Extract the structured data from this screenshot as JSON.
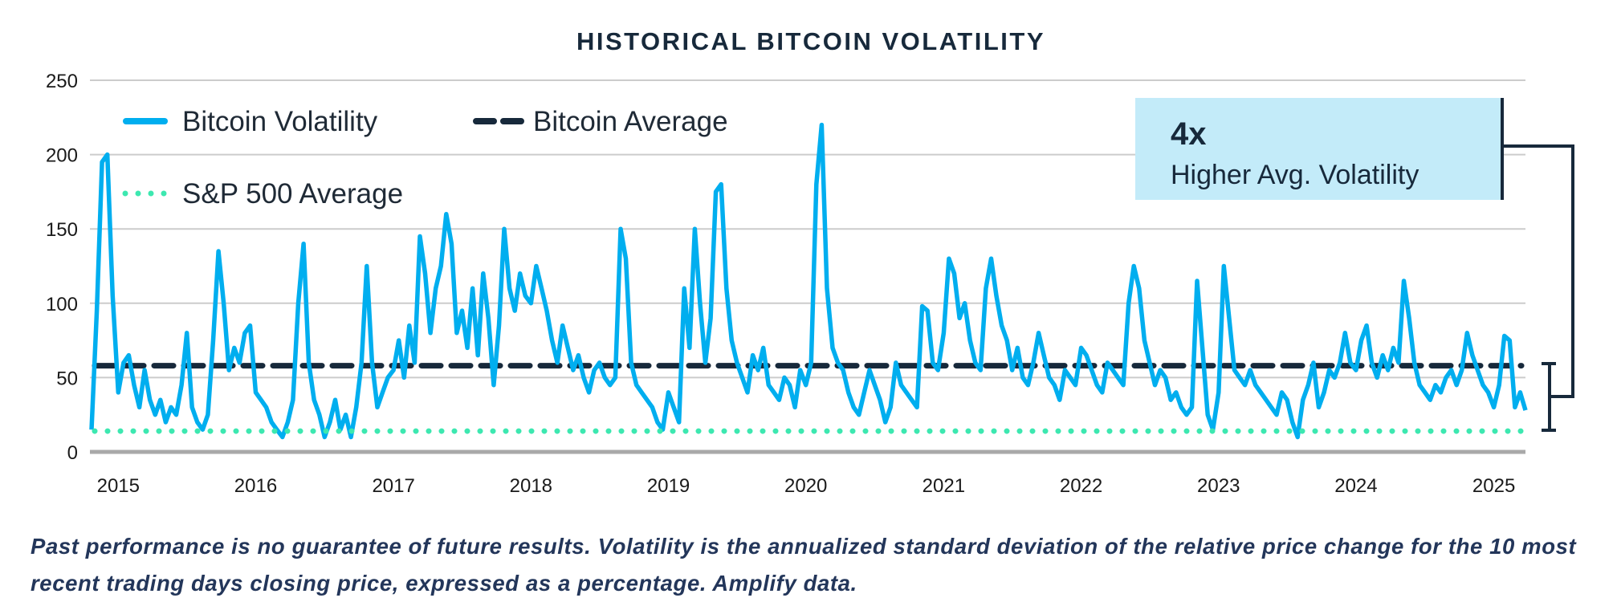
{
  "chart_data": {
    "type": "line",
    "title": "HISTORICAL BITCOIN VOLATILITY",
    "xlabel": "",
    "ylabel": "",
    "ylim": [
      0,
      250
    ],
    "yticks": [
      "0",
      "50",
      "100",
      "150",
      "200",
      "250"
    ],
    "xticks": [
      "2015",
      "2016",
      "2017",
      "2018",
      "2019",
      "2020",
      "2021",
      "2022",
      "2023",
      "2024",
      "2025"
    ],
    "grid": true,
    "legend_position": "top-left",
    "legend": [
      "Bitcoin Volatility",
      "Bitcoin Average",
      "S&P 500 Average"
    ],
    "series": [
      {
        "name": "Bitcoin Volatility",
        "color": "#00aeef",
        "style": "solid",
        "points": [
          [
            "2014-10-22",
            15
          ],
          [
            "2014-11-05",
            95
          ],
          [
            "2014-11-19",
            195
          ],
          [
            "2014-12-03",
            200
          ],
          [
            "2014-12-17",
            105
          ],
          [
            "2015-01-01",
            40
          ],
          [
            "2015-01-15",
            60
          ],
          [
            "2015-01-29",
            65
          ],
          [
            "2015-02-12",
            45
          ],
          [
            "2015-02-26",
            30
          ],
          [
            "2015-03-12",
            55
          ],
          [
            "2015-03-26",
            35
          ],
          [
            "2015-04-09",
            25
          ],
          [
            "2015-04-23",
            35
          ],
          [
            "2015-05-07",
            20
          ],
          [
            "2015-05-21",
            30
          ],
          [
            "2015-06-04",
            25
          ],
          [
            "2015-06-18",
            45
          ],
          [
            "2015-07-02",
            80
          ],
          [
            "2015-07-16",
            30
          ],
          [
            "2015-07-30",
            20
          ],
          [
            "2015-08-13",
            15
          ],
          [
            "2015-08-27",
            25
          ],
          [
            "2015-09-10",
            75
          ],
          [
            "2015-09-24",
            135
          ],
          [
            "2015-10-08",
            100
          ],
          [
            "2015-10-22",
            55
          ],
          [
            "2015-11-05",
            70
          ],
          [
            "2015-11-19",
            60
          ],
          [
            "2015-12-03",
            80
          ],
          [
            "2015-12-17",
            85
          ],
          [
            "2016-01-01",
            40
          ],
          [
            "2016-01-15",
            35
          ],
          [
            "2016-01-29",
            30
          ],
          [
            "2016-02-12",
            20
          ],
          [
            "2016-02-26",
            15
          ],
          [
            "2016-03-12",
            10
          ],
          [
            "2016-03-26",
            20
          ],
          [
            "2016-04-09",
            35
          ],
          [
            "2016-04-23",
            100
          ],
          [
            "2016-05-07",
            140
          ],
          [
            "2016-05-21",
            60
          ],
          [
            "2016-06-04",
            35
          ],
          [
            "2016-06-18",
            25
          ],
          [
            "2016-07-02",
            10
          ],
          [
            "2016-07-16",
            20
          ],
          [
            "2016-07-30",
            35
          ],
          [
            "2016-08-13",
            15
          ],
          [
            "2016-08-27",
            25
          ],
          [
            "2016-09-10",
            10
          ],
          [
            "2016-09-24",
            30
          ],
          [
            "2016-10-08",
            60
          ],
          [
            "2016-10-22",
            125
          ],
          [
            "2016-11-05",
            60
          ],
          [
            "2016-11-19",
            30
          ],
          [
            "2016-12-03",
            40
          ],
          [
            "2016-12-17",
            50
          ],
          [
            "2017-01-01",
            55
          ],
          [
            "2017-01-15",
            75
          ],
          [
            "2017-01-29",
            50
          ],
          [
            "2017-02-12",
            85
          ],
          [
            "2017-02-26",
            60
          ],
          [
            "2017-03-12",
            145
          ],
          [
            "2017-03-26",
            120
          ],
          [
            "2017-04-09",
            80
          ],
          [
            "2017-04-23",
            110
          ],
          [
            "2017-05-07",
            125
          ],
          [
            "2017-05-21",
            160
          ],
          [
            "2017-06-04",
            140
          ],
          [
            "2017-06-18",
            80
          ],
          [
            "2017-07-02",
            95
          ],
          [
            "2017-07-16",
            70
          ],
          [
            "2017-07-30",
            110
          ],
          [
            "2017-08-13",
            65
          ],
          [
            "2017-08-27",
            120
          ],
          [
            "2017-09-10",
            90
          ],
          [
            "2017-09-24",
            45
          ],
          [
            "2017-10-08",
            85
          ],
          [
            "2017-10-22",
            150
          ],
          [
            "2017-11-05",
            110
          ],
          [
            "2017-11-19",
            95
          ],
          [
            "2017-12-03",
            120
          ],
          [
            "2017-12-17",
            105
          ],
          [
            "2018-01-01",
            100
          ],
          [
            "2018-01-15",
            125
          ],
          [
            "2018-01-29",
            110
          ],
          [
            "2018-02-12",
            95
          ],
          [
            "2018-02-26",
            75
          ],
          [
            "2018-03-12",
            60
          ],
          [
            "2018-03-26",
            85
          ],
          [
            "2018-04-09",
            70
          ],
          [
            "2018-04-23",
            55
          ],
          [
            "2018-05-07",
            65
          ],
          [
            "2018-05-21",
            50
          ],
          [
            "2018-06-04",
            40
          ],
          [
            "2018-06-18",
            55
          ],
          [
            "2018-07-02",
            60
          ],
          [
            "2018-07-16",
            50
          ],
          [
            "2018-07-30",
            45
          ],
          [
            "2018-08-13",
            50
          ],
          [
            "2018-08-27",
            150
          ],
          [
            "2018-09-10",
            130
          ],
          [
            "2018-09-24",
            60
          ],
          [
            "2018-10-08",
            45
          ],
          [
            "2018-10-22",
            40
          ],
          [
            "2018-11-05",
            35
          ],
          [
            "2018-11-19",
            30
          ],
          [
            "2018-12-03",
            20
          ],
          [
            "2018-12-17",
            15
          ],
          [
            "2019-01-01",
            40
          ],
          [
            "2019-01-15",
            30
          ],
          [
            "2019-01-29",
            20
          ],
          [
            "2019-02-12",
            110
          ],
          [
            "2019-02-26",
            70
          ],
          [
            "2019-03-12",
            150
          ],
          [
            "2019-03-26",
            100
          ],
          [
            "2019-04-09",
            60
          ],
          [
            "2019-04-23",
            90
          ],
          [
            "2019-05-07",
            175
          ],
          [
            "2019-05-21",
            180
          ],
          [
            "2019-06-04",
            110
          ],
          [
            "2019-06-18",
            75
          ],
          [
            "2019-07-02",
            60
          ],
          [
            "2019-07-16",
            50
          ],
          [
            "2019-07-30",
            40
          ],
          [
            "2019-08-13",
            65
          ],
          [
            "2019-08-27",
            55
          ],
          [
            "2019-09-10",
            70
          ],
          [
            "2019-09-24",
            45
          ],
          [
            "2019-10-08",
            40
          ],
          [
            "2019-10-22",
            35
          ],
          [
            "2019-11-05",
            50
          ],
          [
            "2019-11-19",
            45
          ],
          [
            "2019-12-03",
            30
          ],
          [
            "2019-12-17",
            55
          ],
          [
            "2020-01-01",
            45
          ],
          [
            "2020-01-15",
            60
          ],
          [
            "2020-01-29",
            180
          ],
          [
            "2020-02-12",
            220
          ],
          [
            "2020-02-26",
            110
          ],
          [
            "2020-03-12",
            70
          ],
          [
            "2020-03-26",
            60
          ],
          [
            "2020-04-09",
            55
          ],
          [
            "2020-04-23",
            40
          ],
          [
            "2020-05-07",
            30
          ],
          [
            "2020-05-21",
            25
          ],
          [
            "2020-06-04",
            40
          ],
          [
            "2020-06-18",
            55
          ],
          [
            "2020-07-02",
            45
          ],
          [
            "2020-07-16",
            35
          ],
          [
            "2020-07-30",
            20
          ],
          [
            "2020-08-13",
            30
          ],
          [
            "2020-08-27",
            60
          ],
          [
            "2020-09-10",
            45
          ],
          [
            "2020-09-24",
            40
          ],
          [
            "2020-10-08",
            35
          ],
          [
            "2020-10-22",
            30
          ],
          [
            "2020-11-05",
            98
          ],
          [
            "2020-11-19",
            95
          ],
          [
            "2020-12-03",
            60
          ],
          [
            "2020-12-17",
            55
          ],
          [
            "2021-01-01",
            80
          ],
          [
            "2021-01-15",
            130
          ],
          [
            "2021-01-29",
            120
          ],
          [
            "2021-02-12",
            90
          ],
          [
            "2021-02-26",
            100
          ],
          [
            "2021-03-12",
            75
          ],
          [
            "2021-03-26",
            60
          ],
          [
            "2021-04-09",
            55
          ],
          [
            "2021-04-23",
            110
          ],
          [
            "2021-05-07",
            130
          ],
          [
            "2021-05-21",
            105
          ],
          [
            "2021-06-04",
            85
          ],
          [
            "2021-06-18",
            75
          ],
          [
            "2021-07-02",
            55
          ],
          [
            "2021-07-16",
            70
          ],
          [
            "2021-07-30",
            50
          ],
          [
            "2021-08-13",
            45
          ],
          [
            "2021-08-27",
            60
          ],
          [
            "2021-09-10",
            80
          ],
          [
            "2021-09-24",
            65
          ],
          [
            "2021-10-08",
            50
          ],
          [
            "2021-10-22",
            45
          ],
          [
            "2021-11-05",
            35
          ],
          [
            "2021-11-19",
            55
          ],
          [
            "2021-12-03",
            50
          ],
          [
            "2021-12-17",
            45
          ],
          [
            "2022-01-01",
            70
          ],
          [
            "2022-01-15",
            65
          ],
          [
            "2022-01-29",
            55
          ],
          [
            "2022-02-12",
            45
          ],
          [
            "2022-02-26",
            40
          ],
          [
            "2022-03-12",
            60
          ],
          [
            "2022-03-26",
            55
          ],
          [
            "2022-04-09",
            50
          ],
          [
            "2022-04-23",
            45
          ],
          [
            "2022-05-07",
            100
          ],
          [
            "2022-05-21",
            125
          ],
          [
            "2022-06-04",
            110
          ],
          [
            "2022-06-18",
            75
          ],
          [
            "2022-07-02",
            60
          ],
          [
            "2022-07-16",
            45
          ],
          [
            "2022-07-30",
            55
          ],
          [
            "2022-08-13",
            50
          ],
          [
            "2022-08-27",
            35
          ],
          [
            "2022-09-10",
            40
          ],
          [
            "2022-09-24",
            30
          ],
          [
            "2022-10-08",
            25
          ],
          [
            "2022-10-22",
            30
          ],
          [
            "2022-11-05",
            115
          ],
          [
            "2022-11-19",
            70
          ],
          [
            "2022-12-03",
            25
          ],
          [
            "2022-12-17",
            15
          ],
          [
            "2023-01-01",
            40
          ],
          [
            "2023-01-15",
            125
          ],
          [
            "2023-01-29",
            90
          ],
          [
            "2023-02-12",
            55
          ],
          [
            "2023-02-26",
            50
          ],
          [
            "2023-03-12",
            45
          ],
          [
            "2023-03-26",
            55
          ],
          [
            "2023-04-09",
            45
          ],
          [
            "2023-04-23",
            40
          ],
          [
            "2023-05-07",
            35
          ],
          [
            "2023-05-21",
            30
          ],
          [
            "2023-06-04",
            25
          ],
          [
            "2023-06-18",
            40
          ],
          [
            "2023-07-02",
            35
          ],
          [
            "2023-07-16",
            20
          ],
          [
            "2023-07-30",
            10
          ],
          [
            "2023-08-13",
            35
          ],
          [
            "2023-08-27",
            45
          ],
          [
            "2023-09-10",
            60
          ],
          [
            "2023-09-24",
            30
          ],
          [
            "2023-10-08",
            40
          ],
          [
            "2023-10-22",
            55
          ],
          [
            "2023-11-05",
            50
          ],
          [
            "2023-11-19",
            60
          ],
          [
            "2023-12-03",
            80
          ],
          [
            "2023-12-17",
            60
          ],
          [
            "2024-01-01",
            55
          ],
          [
            "2024-01-15",
            75
          ],
          [
            "2024-01-29",
            85
          ],
          [
            "2024-02-12",
            60
          ],
          [
            "2024-02-26",
            50
          ],
          [
            "2024-03-12",
            65
          ],
          [
            "2024-03-26",
            55
          ],
          [
            "2024-04-09",
            70
          ],
          [
            "2024-04-23",
            60
          ],
          [
            "2024-05-07",
            115
          ],
          [
            "2024-05-21",
            90
          ],
          [
            "2024-06-04",
            60
          ],
          [
            "2024-06-18",
            45
          ],
          [
            "2024-07-02",
            40
          ],
          [
            "2024-07-16",
            35
          ],
          [
            "2024-07-30",
            45
          ],
          [
            "2024-08-13",
            40
          ],
          [
            "2024-08-27",
            50
          ],
          [
            "2024-09-10",
            55
          ],
          [
            "2024-09-24",
            45
          ],
          [
            "2024-10-08",
            55
          ],
          [
            "2024-10-22",
            80
          ],
          [
            "2024-11-05",
            65
          ],
          [
            "2024-11-19",
            55
          ],
          [
            "2024-12-03",
            45
          ],
          [
            "2024-12-17",
            40
          ],
          [
            "2025-01-01",
            30
          ],
          [
            "2025-01-15",
            45
          ],
          [
            "2025-01-29",
            78
          ],
          [
            "2025-02-12",
            75
          ],
          [
            "2025-02-26",
            30
          ],
          [
            "2025-03-12",
            40
          ],
          [
            "2025-03-26",
            28
          ]
        ]
      },
      {
        "name": "Bitcoin Average",
        "color": "#17293b",
        "style": "dashed",
        "value": 58
      },
      {
        "name": "S&P 500 Average",
        "color": "#3de8b0",
        "style": "dotted",
        "value": 14
      }
    ],
    "annotation": {
      "value": "4x",
      "label": "Higher Avg. Volatility",
      "background": "#c3ebf9"
    }
  },
  "footnote": "Past performance is no guarantee of future results. Volatility is the annualized standard deviation of the relative price change for the 10 most recent trading days closing price, expressed as a percentage. Amplify data."
}
